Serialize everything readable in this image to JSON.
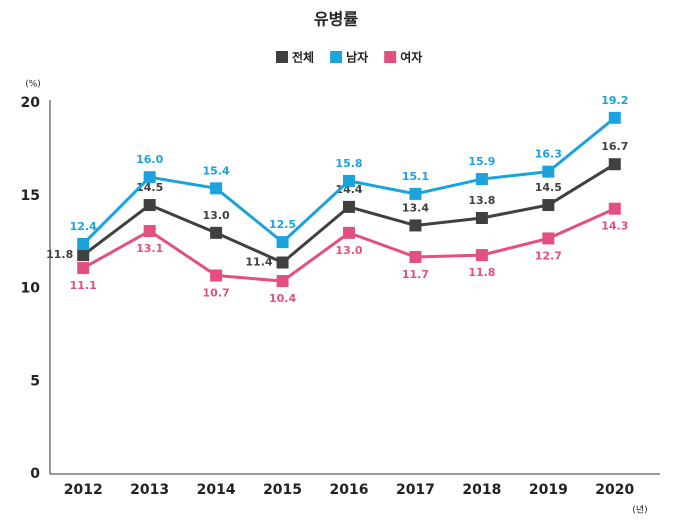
{
  "chart_data": {
    "type": "line",
    "title": "유병률",
    "y_unit": "(%)",
    "x_unit": "(년)",
    "categories": [
      "2012",
      "2013",
      "2014",
      "2015",
      "2016",
      "2017",
      "2018",
      "2019",
      "2020"
    ],
    "series": [
      {
        "name": "전체",
        "color": "#404040",
        "values": [
          11.8,
          14.5,
          13.0,
          11.4,
          14.4,
          13.4,
          13.8,
          14.5,
          16.7
        ],
        "value_labels": [
          "11.8",
          "14.5",
          "13.0",
          "11.4",
          "14.4",
          "13.4",
          "13.8",
          "14.5",
          "16.7"
        ]
      },
      {
        "name": "남자",
        "color": "#1aa3dc",
        "values": [
          12.4,
          16.0,
          15.4,
          12.5,
          15.8,
          15.1,
          15.9,
          16.3,
          19.2
        ],
        "value_labels": [
          "12.4",
          "16.0",
          "15.4",
          "12.5",
          "15.8",
          "15.1",
          "15.9",
          "16.3",
          "19.2"
        ]
      },
      {
        "name": "여자",
        "color": "#e2507f",
        "values": [
          11.1,
          13.1,
          10.7,
          10.4,
          13.0,
          11.7,
          11.8,
          12.7,
          14.3
        ],
        "value_labels": [
          "11.1",
          "13.1",
          "10.7",
          "10.4",
          "13.0",
          "11.7",
          "11.8",
          "12.7",
          "14.3"
        ]
      }
    ],
    "ylim": [
      0,
      20
    ],
    "yticks": [
      0,
      5,
      10,
      15,
      20
    ],
    "grid": false
  }
}
